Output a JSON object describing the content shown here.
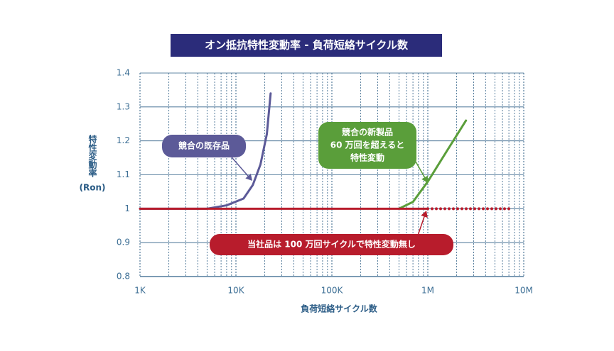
{
  "chart_data": {
    "type": "line",
    "title": "オン抵抗特性変動率 - 負荷短絡サイクル数",
    "title_color": "#2b2c7a",
    "xlabel": "負荷短絡サイクル数",
    "ylabel": "特性変動率",
    "ylabel_unit": "(Ron)",
    "xscale": "log",
    "xlim": [
      1000,
      10000000
    ],
    "xticks": [
      {
        "value": 1000,
        "label": "1K"
      },
      {
        "value": 10000,
        "label": "10K"
      },
      {
        "value": 100000,
        "label": "100K"
      },
      {
        "value": 1000000,
        "label": "1M"
      },
      {
        "value": 10000000,
        "label": "10M"
      }
    ],
    "ylim": [
      0.8,
      1.4
    ],
    "yticks": [
      1.4,
      1.3,
      1.2,
      1.1,
      1,
      0.9,
      0.8
    ],
    "grid": true,
    "series": [
      {
        "color": "#5c5a98",
        "x": [
          1000,
          5000,
          8000,
          12000,
          15000,
          18000,
          21000,
          23000
        ],
        "values": [
          1.0,
          1.0,
          1.01,
          1.03,
          1.07,
          1.13,
          1.22,
          1.34
        ]
      },
      {
        "color": "#5a9e3a",
        "x": [
          500000,
          700000,
          1000000,
          1500000,
          2500000
        ],
        "values": [
          1.0,
          1.02,
          1.08,
          1.16,
          1.26
        ]
      },
      {
        "color": "#b81c2c",
        "x": [
          1000,
          1000000
        ],
        "values": [
          1,
          1
        ]
      },
      {
        "color": "#b81c2c",
        "dash": "dotted",
        "x": [
          1000000,
          7500000
        ],
        "values": [
          1,
          1
        ]
      }
    ],
    "annotations": [
      {
        "lines": [
          "競合の既存品"
        ],
        "color": "#5c5a98"
      },
      {
        "lines": [
          "競合の新製品",
          "60 万回を超えると",
          "特性変動"
        ],
        "color": "#5a9e3a"
      },
      {
        "lines": [
          "当社品は 100 万回サイクルで特性変動無し"
        ],
        "color": "#b81c2c"
      }
    ]
  }
}
